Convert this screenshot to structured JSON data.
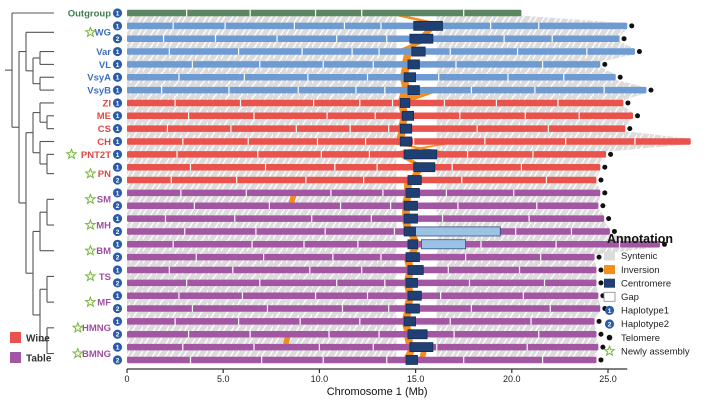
{
  "legend": {
    "title": "Annotation",
    "items": [
      {
        "label": "Syntenic",
        "type": "rect",
        "color": "#dcdcdc"
      },
      {
        "label": "Inversion",
        "type": "rect",
        "color": "#f28d1e"
      },
      {
        "label": "Centromere",
        "type": "rect",
        "color": "#203f73"
      },
      {
        "label": "Gap",
        "type": "rect-outline",
        "color": "#ffffff"
      },
      {
        "label": "Haplotype1",
        "type": "hap",
        "num": "1"
      },
      {
        "label": "Haplotype2",
        "type": "hap",
        "num": "2"
      },
      {
        "label": "Telomere",
        "type": "dot",
        "color": "#111111"
      },
      {
        "label": "Newly assembly",
        "type": "star",
        "color": "#79b53f"
      }
    ]
  },
  "group_legend": [
    {
      "label": "Wine",
      "color": "#e9534c"
    },
    {
      "label": "Table",
      "color": "#a357a3"
    }
  ],
  "colors": {
    "outgroup": "#5c8562",
    "wild": "#6f9bd3",
    "wine": "#e9534c",
    "table": "#a357a3",
    "label_outgroup": "#3e7d4c",
    "label_wild": "#3f6fbf",
    "label_wine": "#e04843",
    "label_table": "#9c4f9e",
    "syntenic": "#dcdcdc",
    "inversion": "#f28d1e",
    "centromere": "#203f73",
    "centromere_light": "#9cc3e5",
    "haplotype": "#2b5ca8",
    "telomere": "#111111",
    "star_stroke": "#79b53f",
    "tree": "#555555",
    "axis": "#333333"
  },
  "chart_data": {
    "type": "synteny-alignment",
    "axis": {
      "title": "Chromosome 1 (Mb)",
      "range": [
        0,
        26.5
      ],
      "ticks": [
        {
          "v": 0,
          "label": "0"
        },
        {
          "v": 5,
          "label": "5.0"
        },
        {
          "v": 10,
          "label": "10.0"
        },
        {
          "v": 15,
          "label": "15.0"
        },
        {
          "v": 20,
          "label": "20.0"
        },
        {
          "v": 25,
          "label": "25.0"
        }
      ]
    },
    "centromere_gap": [
      14.0,
      16.1
    ],
    "taxa": [
      {
        "name": "Outgroup",
        "group": "outgroup",
        "star": false
      },
      {
        "name": "WG",
        "group": "wild",
        "star": true
      },
      {
        "name": "Var",
        "group": "wild",
        "star": false
      },
      {
        "name": "VL",
        "group": "wild",
        "star": false
      },
      {
        "name": "VsyA",
        "group": "wild",
        "star": false
      },
      {
        "name": "VsyB",
        "group": "wild",
        "star": false
      },
      {
        "name": "ZI",
        "group": "wine",
        "star": false
      },
      {
        "name": "ME",
        "group": "wine",
        "star": false
      },
      {
        "name": "CS",
        "group": "wine",
        "star": false
      },
      {
        "name": "CH",
        "group": "wine",
        "star": false
      },
      {
        "name": "PNT2T",
        "group": "wine",
        "star": true
      },
      {
        "name": "PN",
        "group": "wine",
        "star": true
      },
      {
        "name": "SM",
        "group": "table",
        "star": true
      },
      {
        "name": "MH",
        "group": "table",
        "star": true
      },
      {
        "name": "BM",
        "group": "table",
        "star": true
      },
      {
        "name": "TS",
        "group": "table",
        "star": true
      },
      {
        "name": "MF",
        "group": "table",
        "star": true
      },
      {
        "name": "HMNG",
        "group": "table",
        "star": true
      },
      {
        "name": "BMNG",
        "group": "table",
        "star": true
      }
    ],
    "tree": [
      "Outgroup",
      [
        [
          "WG",
          [
            [
              "Var",
              "VL"
            ],
            [
              "VsyA",
              "VsyB"
            ]
          ]
        ],
        [
          [
            [
              "ZI",
              [
                "ME",
                "CS"
              ]
            ],
            [
              "CH",
              [
                "PNT2T",
                "PN"
              ]
            ]
          ],
          [
            [
              [
                "SM",
                "MH"
              ],
              "BM"
            ],
            [
              [
                "TS",
                "MF"
              ],
              [
                "HMNG",
                "BMNG"
              ]
            ]
          ]
        ]
      ]
    ],
    "rows": [
      {
        "taxon": "Outgroup",
        "hap": 1,
        "len": 20.5,
        "telo": false,
        "gaps": [
          3.1,
          6.4,
          9.8,
          12.2,
          17.5
        ]
      },
      {
        "taxon": "WG",
        "hap": 1,
        "len": 26.0,
        "telo": true,
        "cent": [
          14.9,
          16.4
        ],
        "gaps": [
          2.4,
          5.1,
          8.7,
          11.3,
          13.2,
          18.9,
          21.4
        ]
      },
      {
        "taxon": "WG",
        "hap": 2,
        "len": 25.6,
        "telo": true,
        "cent": [
          14.7,
          15.9
        ],
        "gaps": [
          1.9,
          4.6,
          7.8,
          10.9,
          13.5,
          19.6,
          22.1
        ]
      },
      {
        "taxon": "Var",
        "hap": 1,
        "len": 26.4,
        "telo": true,
        "cent": [
          14.8,
          15.5
        ],
        "gaps": [
          2.2,
          5.8,
          9.1,
          11.7,
          13.1,
          16.8,
          20.3,
          23.9
        ]
      },
      {
        "taxon": "VL",
        "hap": 1,
        "len": 24.6,
        "telo": true,
        "cent": [
          14.6,
          15.2
        ],
        "gaps": [
          3.4,
          6.9,
          10.2,
          12.8,
          17.1,
          21.6
        ]
      },
      {
        "taxon": "VsyA",
        "hap": 1,
        "len": 25.4,
        "telo": true,
        "cent": [
          14.4,
          15.0
        ],
        "gaps": [
          2.7,
          6.1,
          9.4,
          12.5,
          16.2,
          19.8,
          22.7
        ]
      },
      {
        "taxon": "VsyB",
        "hap": 1,
        "len": 27.0,
        "telo": true,
        "cent": [
          14.6,
          15.2
        ],
        "gaps": [
          1.8,
          5.3,
          8.9,
          11.9,
          13.4,
          17.9,
          21.2,
          24.8
        ]
      },
      {
        "taxon": "ZI",
        "hap": 1,
        "len": 25.8,
        "telo": true,
        "cent": [
          14.2,
          14.7
        ],
        "gaps": [
          2.5,
          5.9,
          9.7,
          12.1,
          13.8,
          16.5,
          19.2,
          22.4
        ]
      },
      {
        "taxon": "ME",
        "hap": 1,
        "len": 26.3,
        "telo": true,
        "cent": [
          14.3,
          14.9
        ],
        "gaps": [
          3.2,
          6.6,
          10.4,
          12.9,
          17.3,
          20.7,
          23.5
        ]
      },
      {
        "taxon": "CS",
        "hap": 1,
        "len": 25.9,
        "telo": true,
        "cent": [
          14.2,
          14.8
        ],
        "gaps": [
          2.1,
          5.4,
          8.8,
          11.6,
          13.6,
          18.2,
          21.9
        ]
      },
      {
        "taxon": "CH",
        "hap": 1,
        "len": 29.3,
        "telo": false,
        "cent": [
          14.2,
          14.8
        ],
        "gaps": [
          2.9,
          6.3,
          9.9,
          12.4,
          14.9,
          18.6,
          22.8,
          26.4
        ]
      },
      {
        "taxon": "PNT2T",
        "hap": 1,
        "len": 24.9,
        "telo": true,
        "cent": [
          14.4,
          16.1
        ],
        "gaps": [
          2.6,
          6.8,
          10.1,
          12.6,
          17.7,
          21.1
        ]
      },
      {
        "taxon": "PN",
        "hap": 1,
        "len": 24.6,
        "telo": true,
        "cent": [
          14.9,
          16.0
        ],
        "gaps": [
          3.3,
          7.2,
          10.8,
          13.0,
          16.9,
          20.5
        ]
      },
      {
        "taxon": "PN",
        "hap": 2,
        "len": 24.4,
        "telo": true,
        "cent": [
          14.6,
          15.3
        ],
        "gaps": [
          2.3,
          5.7,
          9.3,
          12.3,
          17.4,
          21.8
        ]
      },
      {
        "taxon": "SM",
        "hap": 1,
        "len": 24.6,
        "telo": true,
        "cent": [
          14.5,
          15.2
        ],
        "gaps": [
          2.8,
          6.2,
          10.6,
          13.3,
          16.6,
          20.1
        ]
      },
      {
        "taxon": "SM",
        "hap": 2,
        "len": 24.5,
        "telo": true,
        "cent": [
          14.4,
          15.1
        ],
        "gaps": [
          3.5,
          7.4,
          11.1,
          13.7,
          17.2,
          21.3
        ]
      },
      {
        "taxon": "MH",
        "hap": 1,
        "len": 24.8,
        "telo": true,
        "cent": [
          14.4,
          15.1
        ],
        "gaps": [
          2.0,
          5.6,
          9.6,
          12.7,
          16.4,
          20.9
        ]
      },
      {
        "taxon": "MH",
        "hap": 2,
        "len": 25.1,
        "telo": true,
        "cent": [
          14.4,
          15.0
        ],
        "light": [
          15.0,
          19.4
        ],
        "gaps": [
          3.0,
          6.7,
          10.3,
          13.9,
          20.2,
          23.1
        ]
      },
      {
        "taxon": "BM",
        "hap": 1,
        "len": 27.7,
        "telo": true,
        "cent": [
          14.6,
          15.1
        ],
        "light": [
          15.3,
          17.6
        ],
        "gaps": [
          2.4,
          6.5,
          9.2,
          12.0,
          18.4,
          22.3,
          25.6
        ]
      },
      {
        "taxon": "BM",
        "hap": 2,
        "len": 24.3,
        "telo": true,
        "cent": [
          14.5,
          15.2
        ],
        "gaps": [
          3.6,
          7.1,
          10.7,
          13.2,
          17.6,
          21.5
        ]
      },
      {
        "taxon": "TS",
        "hap": 1,
        "len": 24.4,
        "telo": true,
        "cent": [
          14.6,
          15.4
        ],
        "gaps": [
          2.2,
          5.5,
          9.5,
          12.2,
          16.7,
          20.4
        ]
      },
      {
        "taxon": "TS",
        "hap": 2,
        "len": 24.4,
        "telo": true,
        "cent": [
          14.5,
          15.1
        ],
        "gaps": [
          3.1,
          6.9,
          10.9,
          13.4,
          17.8,
          21.7
        ]
      },
      {
        "taxon": "MF",
        "hap": 1,
        "len": 24.5,
        "telo": true,
        "cent": [
          14.6,
          15.3
        ],
        "gaps": [
          2.7,
          6.0,
          9.8,
          12.5,
          16.3,
          20.6
        ]
      },
      {
        "taxon": "MF",
        "hap": 2,
        "len": 24.6,
        "telo": true,
        "cent": [
          14.5,
          15.2
        ],
        "gaps": [
          3.4,
          7.3,
          11.2,
          13.6,
          17.9,
          22.0
        ]
      },
      {
        "taxon": "HMNG",
        "hap": 1,
        "len": 24.3,
        "telo": true,
        "cent": [
          14.4,
          15.0
        ],
        "gaps": [
          2.5,
          5.8,
          9.0,
          12.1,
          16.8,
          21.0
        ]
      },
      {
        "taxon": "HMNG",
        "hap": 2,
        "len": 24.4,
        "telo": true,
        "cent": [
          14.6,
          15.6
        ],
        "gaps": [
          3.2,
          6.4,
          10.5,
          13.1,
          17.0,
          21.4
        ]
      },
      {
        "taxon": "BMNG",
        "hap": 1,
        "len": 24.5,
        "telo": true,
        "cent": [
          14.7,
          15.9
        ],
        "gaps": [
          2.9,
          6.6,
          10.0,
          12.8,
          16.1,
          20.8
        ]
      },
      {
        "taxon": "BMNG",
        "hap": 2,
        "len": 24.4,
        "telo": true,
        "cent": [
          14.5,
          15.1
        ],
        "gaps": [
          3.3,
          7.0,
          10.2,
          13.5,
          17.5,
          21.6
        ]
      }
    ],
    "inversions": [
      [
        [
          13.9,
          14.5,
          15.7,
          16.3
        ]
      ],
      [
        [
          15.6,
          16.0,
          15.2,
          15.6
        ]
      ],
      [
        [
          15.1,
          15.6,
          14.2,
          14.7
        ]
      ],
      [
        [
          14.4,
          14.8,
          14.3,
          14.7
        ]
      ],
      [
        [
          14.3,
          14.7,
          14.2,
          14.6
        ]
      ],
      [
        [
          14.2,
          14.6,
          14.3,
          14.7
        ]
      ],
      [
        [
          14.2,
          16.0,
          14.1,
          14.9
        ]
      ],
      [
        [
          14.1,
          14.5,
          14.2,
          14.6
        ]
      ],
      [
        [
          14.2,
          14.6,
          14.1,
          14.5
        ]
      ],
      [
        [
          14.1,
          14.5,
          14.0,
          14.4
        ]
      ],
      [
        [
          13.8,
          14.3,
          16.1,
          16.6
        ],
        [
          16.2,
          16.7,
          13.9,
          14.4
        ]
      ],
      [
        [
          14.2,
          14.6,
          14.9,
          15.3
        ]
      ],
      [
        [
          15.0,
          15.4,
          14.7,
          15.1
        ]
      ],
      [
        [
          14.4,
          14.8,
          14.4,
          14.8
        ]
      ],
      [
        [
          8.5,
          8.8,
          8.4,
          8.7
        ],
        [
          14.4,
          14.8,
          14.3,
          14.7
        ]
      ],
      [
        [
          14.3,
          14.7,
          14.3,
          14.7
        ]
      ],
      [
        [
          14.3,
          14.7,
          14.4,
          14.8
        ]
      ],
      [
        [
          14.6,
          15.0,
          14.8,
          15.2
        ]
      ],
      [
        [
          14.8,
          15.2,
          14.6,
          15.0
        ]
      ],
      [
        [
          14.4,
          14.8,
          14.5,
          14.9
        ]
      ],
      [
        [
          14.5,
          14.9,
          14.4,
          14.8
        ]
      ],
      [
        [
          14.4,
          14.8,
          14.5,
          14.9
        ]
      ],
      [
        [
          14.5,
          14.9,
          14.4,
          14.8
        ]
      ],
      [
        [
          14.4,
          14.8,
          14.3,
          14.7
        ]
      ],
      [
        [
          14.3,
          14.7,
          14.4,
          14.8
        ]
      ],
      [
        [
          8.2,
          8.5,
          8.1,
          8.4
        ],
        [
          14.4,
          14.8,
          14.5,
          14.9
        ]
      ],
      [
        [
          14.6,
          15.0,
          14.4,
          14.8
        ],
        [
          15.3,
          15.6,
          15.2,
          15.5
        ]
      ]
    ]
  }
}
